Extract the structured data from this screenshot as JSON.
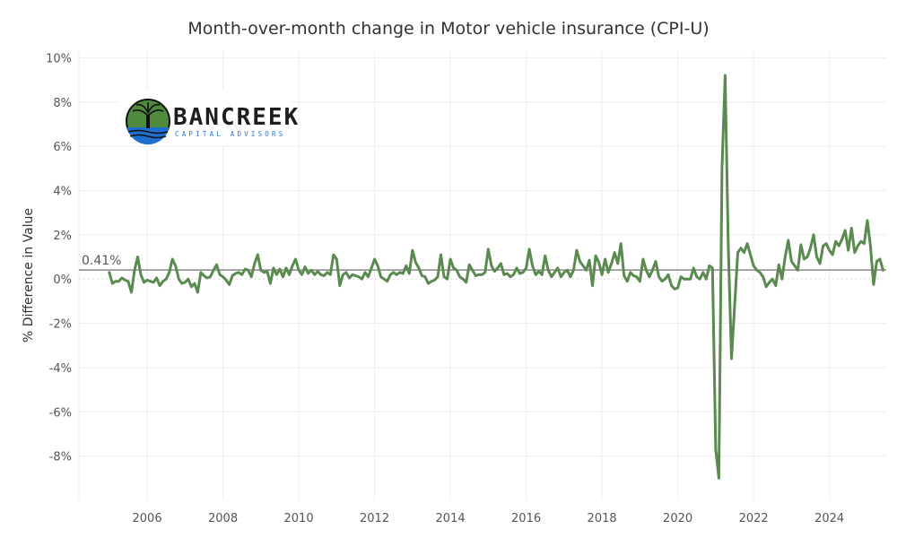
{
  "chart_data": {
    "type": "line",
    "title": "Month-over-month change in Motor vehicle insurance (CPI-U)",
    "xlabel": "",
    "ylabel": "% Difference in Value",
    "xlim": [
      2004.2,
      2025.5
    ],
    "ylim": [
      -10,
      10.3
    ],
    "x_ticks": [
      "2006",
      "2008",
      "2010",
      "2012",
      "2014",
      "2016",
      "2018",
      "2020",
      "2022",
      "2024"
    ],
    "y_ticks": [
      "10%",
      "8%",
      "6%",
      "4%",
      "2%",
      "0%",
      "-2%",
      "-4%",
      "-6%",
      "-8%"
    ],
    "grid": true,
    "line_color": "#5a8a50",
    "reference_line": {
      "value": 0.41,
      "label": "0.41%",
      "color": "#888888"
    },
    "series": [
      {
        "start": [
          2005,
          1
        ],
        "values": [
          0.3,
          -0.2,
          -0.1,
          -0.1,
          0.05,
          -0.05,
          -0.1,
          -0.6,
          0.4,
          1.0,
          0.2,
          -0.15,
          -0.05,
          -0.1,
          -0.15,
          0.05,
          -0.3,
          -0.1,
          0.0,
          0.3,
          0.9,
          0.6,
          0.0,
          -0.2,
          -0.15,
          0.0,
          -0.35,
          -0.2,
          -0.6,
          0.3,
          0.15,
          0.05,
          0.1,
          0.4,
          0.65,
          0.2,
          0.1,
          -0.05,
          -0.25,
          0.15,
          0.25,
          0.3,
          0.2,
          0.45,
          0.4,
          0.1,
          0.7,
          1.1,
          0.4,
          0.3,
          0.35,
          -0.2,
          0.5,
          0.2,
          0.45,
          0.1,
          0.5,
          0.2,
          0.6,
          0.9,
          0.4,
          0.2,
          0.55,
          0.25,
          0.4,
          0.2,
          0.35,
          0.2,
          0.15,
          0.3,
          0.2,
          1.1,
          0.9,
          -0.3,
          0.2,
          0.3,
          0.05,
          0.2,
          0.15,
          0.1,
          0.0,
          0.3,
          0.1,
          0.5,
          0.9,
          0.6,
          0.1,
          0.0,
          -0.1,
          0.2,
          0.3,
          0.2,
          0.3,
          0.25,
          0.6,
          0.25,
          1.3,
          0.75,
          0.5,
          0.15,
          0.1,
          -0.2,
          -0.1,
          -0.05,
          0.1,
          1.1,
          0.1,
          0.0,
          0.9,
          0.5,
          0.4,
          0.1,
          0.0,
          -0.15,
          0.65,
          0.4,
          0.15,
          0.2,
          0.2,
          0.3,
          1.35,
          0.6,
          0.35,
          0.5,
          0.7,
          0.2,
          0.25,
          0.1,
          0.2,
          0.5,
          0.25,
          0.3,
          0.5,
          1.35,
          0.6,
          0.2,
          0.35,
          0.2,
          1.05,
          0.4,
          0.1,
          0.3,
          0.5,
          0.1,
          0.3,
          0.4,
          0.1,
          0.4,
          1.3,
          0.8,
          0.6,
          0.4,
          0.85,
          -0.3,
          1.05,
          0.75,
          0.2,
          0.9,
          0.3,
          0.7,
          1.2,
          0.7,
          1.6,
          0.15,
          -0.1,
          0.3,
          0.15,
          0.1,
          -0.1,
          0.9,
          0.4,
          0.1,
          0.4,
          0.8,
          0.1,
          -0.1,
          0.0,
          0.2,
          -0.3,
          -0.45,
          -0.4,
          0.1,
          0.0,
          0.0,
          0.0,
          0.5,
          0.1,
          0.0,
          0.3,
          0.0,
          0.6,
          0.5,
          -7.7,
          -9.0,
          5.0,
          9.2,
          1.5,
          -3.6,
          -1.2,
          1.2,
          1.4,
          1.2,
          1.6,
          1.1,
          0.6,
          0.4,
          0.3,
          0.1,
          -0.35,
          -0.15,
          0.0,
          -0.3,
          0.65,
          0.0,
          1.0,
          1.75,
          0.8,
          0.6,
          0.4,
          1.55,
          0.9,
          1.0,
          1.4,
          2.0,
          1.0,
          0.7,
          1.5,
          1.6,
          1.3,
          1.1,
          1.7,
          1.5,
          1.8,
          2.2,
          1.3,
          2.3,
          1.2,
          1.5,
          1.7,
          1.6,
          2.65,
          1.5,
          -0.25,
          0.8,
          0.9,
          0.4
        ]
      }
    ]
  },
  "logo": {
    "name": "BANCREEK",
    "tagline": "CAPITAL ADVISORS"
  }
}
